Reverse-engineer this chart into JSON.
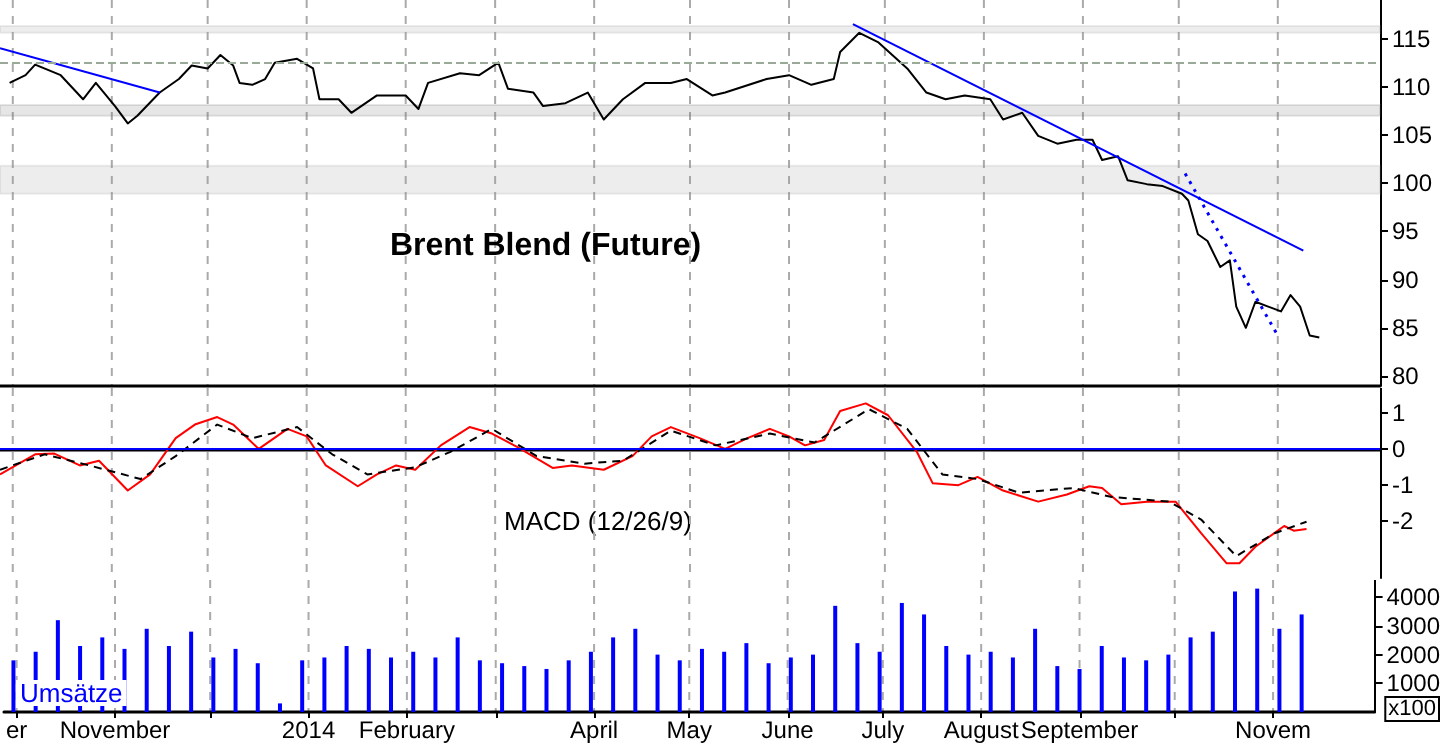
{
  "chart_data": [
    {
      "type": "line",
      "title": "Brent Blend (Future)",
      "xlim": [
        "2013-09-27",
        "2014-12-03"
      ],
      "ylim": [
        79,
        119
      ],
      "yticks": [
        80,
        85,
        90,
        95,
        100,
        105,
        110,
        115
      ],
      "grid": "x",
      "tick_labels": "y",
      "xticks": [
        {
          "value": "2013-10-01",
          "label": null
        },
        {
          "value": "2013-11-01",
          "label": null
        },
        {
          "value": "2013-12-01",
          "label": null
        },
        {
          "value": "2014-01-01",
          "label": null
        },
        {
          "value": "2014-02-01",
          "label": null
        },
        {
          "value": "2014-03-01",
          "label": null
        },
        {
          "value": "2014-04-01",
          "label": null
        },
        {
          "value": "2014-05-01",
          "label": null
        },
        {
          "value": "2014-06-01",
          "label": null
        },
        {
          "value": "2014-07-01",
          "label": null
        },
        {
          "value": "2014-08-01",
          "label": null
        },
        {
          "value": "2014-09-01",
          "label": null
        },
        {
          "value": "2014-10-01",
          "label": null
        },
        {
          "value": "2014-11-01",
          "label": null
        }
      ],
      "bands": [
        {
          "axis": "y",
          "from": 115.6,
          "to": 116.3,
          "color": "#999999"
        },
        {
          "axis": "y",
          "from": 107,
          "to": 108.1,
          "color": "#777777"
        },
        {
          "axis": "y",
          "from": 98.9,
          "to": 101.8,
          "color": "#999999"
        }
      ],
      "ref_lines": [
        {
          "axis": "y",
          "value": 112.5,
          "color": "#99aa99",
          "line_style": "dashed"
        }
      ],
      "series": [
        {
          "color": "#000000",
          "x": [
            "2013-09-30",
            "2013-10-05",
            "2013-10-08",
            "2013-10-16",
            "2013-10-23",
            "2013-10-27",
            "2013-11-02",
            "2013-11-06",
            "2013-11-09",
            "2013-11-16",
            "2013-11-22",
            "2013-11-26",
            "2013-12-01",
            "2013-12-05",
            "2013-12-09",
            "2013-12-11",
            "2013-12-15",
            "2013-12-19",
            "2013-12-22",
            "2013-12-29",
            "2014-01-03",
            "2014-01-05",
            "2014-01-11",
            "2014-01-15",
            "2014-01-23",
            "2014-02-01",
            "2014-02-05",
            "2014-02-08",
            "2014-02-18",
            "2014-02-24",
            "2014-03-02",
            "2014-03-05",
            "2014-03-13",
            "2014-03-16",
            "2014-03-23",
            "2014-03-30",
            "2014-04-04",
            "2014-04-10",
            "2014-04-17",
            "2014-04-25",
            "2014-04-30",
            "2014-05-08",
            "2014-05-12",
            "2014-05-25",
            "2014-06-01",
            "2014-06-08",
            "2014-06-15",
            "2014-06-17",
            "2014-06-23",
            "2014-06-29",
            "2014-07-08",
            "2014-07-14",
            "2014-07-20",
            "2014-07-26",
            "2014-08-03",
            "2014-08-07",
            "2014-08-13",
            "2014-08-18",
            "2014-08-24",
            "2014-08-30",
            "2014-09-04",
            "2014-09-07",
            "2014-09-12",
            "2014-09-15",
            "2014-09-21",
            "2014-09-26",
            "2014-10-02",
            "2014-10-04",
            "2014-10-07",
            "2014-10-10",
            "2014-10-14",
            "2014-10-17",
            "2014-10-19",
            "2014-10-22",
            "2014-10-25",
            "2014-10-29",
            "2014-11-02",
            "2014-11-05",
            "2014-11-08",
            "2014-11-11",
            "2014-11-14"
          ],
          "values": [
            110.4,
            111.2,
            112.3,
            111.2,
            108.7,
            110.4,
            108,
            106.2,
            107,
            109.4,
            110.8,
            112.2,
            111.9,
            113.3,
            112.2,
            110.4,
            110.2,
            110.8,
            112.5,
            112.9,
            111.9,
            108.7,
            108.7,
            107.3,
            109.1,
            109.1,
            107.7,
            110.4,
            111.4,
            111.2,
            112.5,
            109.8,
            109.4,
            108,
            108.3,
            109.4,
            106.6,
            108.7,
            110.4,
            110.4,
            110.8,
            109.1,
            109.4,
            110.8,
            111.2,
            110.2,
            110.8,
            113.6,
            115.6,
            114.6,
            111.9,
            109.4,
            108.7,
            109.1,
            108.7,
            106.6,
            107.3,
            104.9,
            104.1,
            104.5,
            104.5,
            102.4,
            102.8,
            100.3,
            99.9,
            99.7,
            98.9,
            98.2,
            94.7,
            94,
            91.3,
            92,
            87.2,
            85,
            87.7,
            87.2,
            86.7,
            88.4,
            87.2,
            84.2,
            84
          ]
        },
        {
          "color": "#0000ff",
          "x": [
            "2013-09-27",
            "2013-11-16"
          ],
          "values": [
            114,
            109.4
          ]
        },
        {
          "color": "#0000ff",
          "x": [
            "2014-06-21",
            "2014-11-09"
          ],
          "values": [
            116.5,
            93
          ]
        },
        {
          "color": "#0000ff",
          "line_style": "dotted",
          "x": [
            "2014-10-03",
            "2014-11-01"
          ],
          "values": [
            101,
            84.2
          ]
        }
      ]
    },
    {
      "type": "line",
      "annotations": [
        "MACD (12/26/9)"
      ],
      "xlim": [
        "2013-09-27",
        "2014-12-03"
      ],
      "ylim": [
        -3.6,
        1.7
      ],
      "yticks": [
        -2,
        -1,
        0,
        1
      ],
      "grid": "x",
      "tick_labels": "y",
      "xticks": [
        {
          "value": "2013-10-01",
          "label": null
        },
        {
          "value": "2013-11-01",
          "label": null
        },
        {
          "value": "2013-12-01",
          "label": null
        },
        {
          "value": "2014-01-01",
          "label": null
        },
        {
          "value": "2014-02-01",
          "label": null
        },
        {
          "value": "2014-03-01",
          "label": null
        },
        {
          "value": "2014-04-01",
          "label": null
        },
        {
          "value": "2014-05-01",
          "label": null
        },
        {
          "value": "2014-06-01",
          "label": null
        },
        {
          "value": "2014-07-01",
          "label": null
        },
        {
          "value": "2014-08-01",
          "label": null
        },
        {
          "value": "2014-09-01",
          "label": null
        },
        {
          "value": "2014-10-01",
          "label": null
        },
        {
          "value": "2014-11-01",
          "label": null
        }
      ],
      "ref_lines": [
        {
          "axis": "y",
          "value": 0,
          "color": "#0000ff",
          "line_style": "solid"
        }
      ],
      "series": [
        {
          "color": "#ff0000",
          "x": [
            "2013-09-27",
            "2013-10-08",
            "2013-10-14",
            "2013-10-22",
            "2013-10-28",
            "2013-11-06",
            "2013-11-13",
            "2013-11-21",
            "2013-11-27",
            "2013-12-04",
            "2013-12-09",
            "2013-12-17",
            "2013-12-26",
            "2014-01-01",
            "2014-01-07",
            "2014-01-17",
            "2014-01-23",
            "2014-01-29",
            "2014-02-04",
            "2014-02-12",
            "2014-02-21",
            "2014-02-28",
            "2014-03-08",
            "2014-03-19",
            "2014-03-25",
            "2014-04-04",
            "2014-04-13",
            "2014-04-19",
            "2014-04-25",
            "2014-05-04",
            "2014-05-12",
            "2014-05-19",
            "2014-05-26",
            "2014-06-01",
            "2014-06-06",
            "2014-06-12",
            "2014-06-17",
            "2014-06-25",
            "2014-07-02",
            "2014-07-11",
            "2014-07-16",
            "2014-07-24",
            "2014-07-30",
            "2014-08-07",
            "2014-08-18",
            "2014-08-27",
            "2014-09-03",
            "2014-09-07",
            "2014-09-13",
            "2014-09-21",
            "2014-09-30",
            "2014-10-08",
            "2014-10-16",
            "2014-10-20",
            "2014-10-25",
            "2014-11-03",
            "2014-11-06",
            "2014-11-10"
          ],
          "values": [
            -0.71,
            -0.15,
            -0.13,
            -0.46,
            -0.33,
            -1.16,
            -0.71,
            0.3,
            0.68,
            0.89,
            0.68,
            0,
            0.56,
            0.35,
            -0.46,
            -1.04,
            -0.71,
            -0.46,
            -0.58,
            0.1,
            0.61,
            0.43,
            0.05,
            -0.53,
            -0.46,
            -0.58,
            -0.2,
            0.35,
            0.61,
            0.3,
            0,
            0.3,
            0.56,
            0.35,
            0.1,
            0.25,
            1.06,
            1.27,
            0.94,
            -0.08,
            -0.96,
            -1.01,
            -0.78,
            -1.16,
            -1.47,
            -1.27,
            -1.04,
            -1.09,
            -1.54,
            -1.47,
            -1.47,
            -2.35,
            -3.19,
            -3.19,
            -2.73,
            -2.15,
            -2.28,
            -2.23
          ]
        },
        {
          "color": "#000000",
          "line_style": "dashed",
          "x": [
            "2013-09-27",
            "2013-10-11",
            "2013-10-25",
            "2013-11-10",
            "2013-11-21",
            "2013-12-04",
            "2013-12-15",
            "2013-12-29",
            "2014-01-09",
            "2014-01-20",
            "2014-02-04",
            "2014-02-15",
            "2014-02-28",
            "2014-03-14",
            "2014-03-29",
            "2014-04-10",
            "2014-04-25",
            "2014-05-09",
            "2014-05-26",
            "2014-06-09",
            "2014-06-26",
            "2014-07-08",
            "2014-07-19",
            "2014-07-30",
            "2014-08-12",
            "2014-08-29",
            "2014-09-10",
            "2014-09-28",
            "2014-10-08",
            "2014-10-19",
            "2014-10-31",
            "2014-11-10"
          ],
          "values": [
            -0.58,
            -0.15,
            -0.46,
            -0.84,
            -0.2,
            0.68,
            0.3,
            0.61,
            -0.15,
            -0.71,
            -0.51,
            -0.08,
            0.56,
            -0.2,
            -0.41,
            -0.33,
            0.51,
            0.1,
            0.43,
            0.18,
            1.11,
            0.56,
            -0.71,
            -0.84,
            -1.22,
            -1.09,
            -1.34,
            -1.47,
            -1.97,
            -2.99,
            -2.35,
            -2.03
          ]
        }
      ]
    },
    {
      "type": "bar",
      "annotations": [
        "Umsätze"
      ],
      "ylabel": "x100",
      "xlim": [
        "2013-09-27",
        "2014-12-03"
      ],
      "ylim": [
        0,
        4600
      ],
      "yticks": [
        1000,
        2000,
        3000,
        4000
      ],
      "grid": "x",
      "xticks": [
        {
          "value": "2013-10-01",
          "label": "er"
        },
        {
          "value": "2013-11-01",
          "label": "November"
        },
        {
          "value": "2013-12-01",
          "label": null
        },
        {
          "value": "2014-01-01",
          "label": "2014"
        },
        {
          "value": "2014-02-01",
          "label": "February"
        },
        {
          "value": "2014-03-01",
          "label": null
        },
        {
          "value": "2014-04-01",
          "label": "April"
        },
        {
          "value": "2014-05-01",
          "label": "May"
        },
        {
          "value": "2014-06-01",
          "label": "June"
        },
        {
          "value": "2014-07-01",
          "label": "July"
        },
        {
          "value": "2014-08-01",
          "label": "August"
        },
        {
          "value": "2014-09-01",
          "label": "September"
        },
        {
          "value": "2014-10-01",
          "label": null
        },
        {
          "value": "2014-11-01",
          "label": "Novem"
        }
      ],
      "series": [
        {
          "color": "#0000ff",
          "x": [
            "2013-09-30",
            "2013-10-07",
            "2013-10-14",
            "2013-10-21",
            "2013-10-28",
            "2013-11-04",
            "2013-11-11",
            "2013-11-18",
            "2013-11-25",
            "2013-12-02",
            "2013-12-09",
            "2013-12-16",
            "2013-12-23",
            "2013-12-30",
            "2014-01-06",
            "2014-01-13",
            "2014-01-20",
            "2014-01-27",
            "2014-02-03",
            "2014-02-10",
            "2014-02-17",
            "2014-02-24",
            "2014-03-03",
            "2014-03-10",
            "2014-03-17",
            "2014-03-24",
            "2014-03-31",
            "2014-04-07",
            "2014-04-14",
            "2014-04-21",
            "2014-04-28",
            "2014-05-05",
            "2014-05-12",
            "2014-05-19",
            "2014-05-26",
            "2014-06-02",
            "2014-06-09",
            "2014-06-16",
            "2014-06-23",
            "2014-06-30",
            "2014-07-07",
            "2014-07-14",
            "2014-07-21",
            "2014-07-28",
            "2014-08-04",
            "2014-08-11",
            "2014-08-18",
            "2014-08-25",
            "2014-09-01",
            "2014-09-08",
            "2014-09-15",
            "2014-09-22",
            "2014-09-29",
            "2014-10-06",
            "2014-10-13",
            "2014-10-20",
            "2014-10-27",
            "2014-11-03",
            "2014-11-10"
          ],
          "values": [
            1800,
            2100,
            3200,
            2300,
            2600,
            2200,
            2900,
            2300,
            2800,
            1900,
            2200,
            1700,
            300,
            1800,
            1900,
            2300,
            2200,
            1900,
            2100,
            1900,
            2600,
            1800,
            1700,
            1600,
            1500,
            1800,
            2100,
            2600,
            2900,
            2000,
            1800,
            2200,
            2100,
            2400,
            1700,
            1900,
            2000,
            3700,
            2400,
            2100,
            3800,
            3400,
            2300,
            2000,
            2100,
            1900,
            2900,
            1600,
            1500,
            2300,
            1900,
            1800,
            2000,
            2600,
            2800,
            4200,
            4300,
            2900,
            3400
          ]
        }
      ]
    }
  ]
}
